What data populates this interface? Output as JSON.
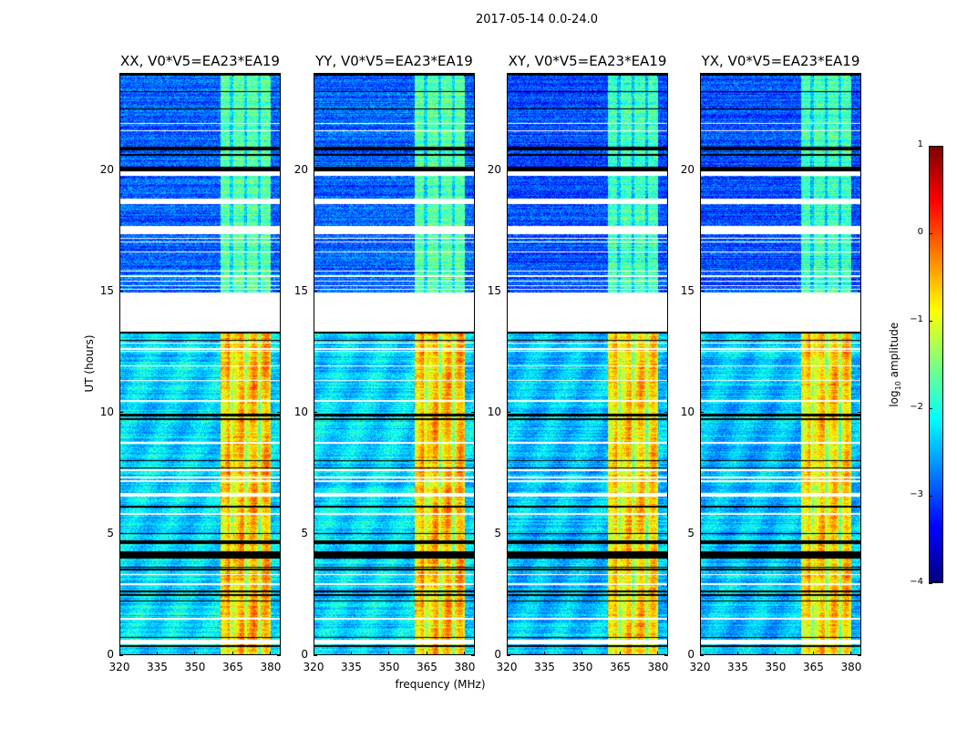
{
  "chart_data": {
    "type": "heatmap",
    "title": "2017-05-14 0.0-24.0",
    "xlabel": "frequency (MHz)",
    "ylabel": "UT (hours)",
    "xlim": [
      320,
      384
    ],
    "ylim": [
      0,
      24
    ],
    "xticks": [
      "320",
      "335",
      "350",
      "365",
      "380"
    ],
    "xtick_values": [
      320,
      335,
      350,
      365,
      380
    ],
    "yticks": [
      "0",
      "5",
      "10",
      "15",
      "20"
    ],
    "ytick_values": [
      0,
      5,
      10,
      15,
      20
    ],
    "panels": [
      {
        "title": "XX, V0*V5=EA23*EA19"
      },
      {
        "title": "YY, V0*V5=EA23*EA19"
      },
      {
        "title": "XY, V0*V5=EA23*EA19"
      },
      {
        "title": "YX, V0*V5=EA23*EA19"
      }
    ],
    "colorbar": {
      "label_prefix": "log",
      "label_sub": "10",
      "label_suffix": " amplitude",
      "range": [
        -4,
        1
      ],
      "ticks": [
        "1",
        "0",
        "−1",
        "−2",
        "−3",
        "−4"
      ],
      "tick_values": [
        1,
        0,
        -1,
        -2,
        -3,
        -4
      ],
      "colormap": "jet"
    },
    "levels": {
      "background_day": -2.9,
      "background_night": -2.3,
      "band_mhz": [
        360,
        380
      ],
      "band_day": -1.7,
      "band_night": -0.6,
      "band_gaps_mhz": [
        364.5,
        370,
        375.5
      ],
      "day_from_hour": 13.3
    },
    "flagged_hours": [
      [
        13.35,
        14.95
      ],
      [
        19.75,
        19.95
      ],
      [
        18.6,
        18.8
      ],
      [
        17.35,
        17.7
      ],
      [
        15.05,
        15.1
      ],
      [
        15.2,
        15.25
      ],
      [
        15.4,
        15.45
      ],
      [
        15.6,
        15.65
      ],
      [
        15.8,
        15.85
      ],
      [
        16.6,
        16.65
      ],
      [
        17.0,
        17.05
      ],
      [
        17.15,
        17.2
      ],
      [
        21.6,
        21.65
      ],
      [
        21.9,
        21.95
      ],
      [
        12.85,
        12.9
      ],
      [
        12.6,
        12.65
      ],
      [
        12.5,
        12.55
      ],
      [
        11.9,
        11.95
      ],
      [
        11.3,
        11.35
      ],
      [
        10.45,
        10.5
      ],
      [
        8.7,
        8.8
      ],
      [
        7.6,
        7.65
      ],
      [
        7.3,
        7.35
      ],
      [
        7.15,
        7.2
      ],
      [
        6.55,
        6.7
      ],
      [
        5.8,
        5.85
      ],
      [
        3.3,
        3.35
      ],
      [
        2.9,
        2.95
      ],
      [
        1.45,
        1.55
      ],
      [
        0.45,
        0.65
      ]
    ],
    "black_hours": [
      [
        23.9,
        24.0
      ],
      [
        23.2,
        23.25
      ],
      [
        22.5,
        22.55
      ],
      [
        20.8,
        20.95
      ],
      [
        20.6,
        20.65
      ],
      [
        19.95,
        20.15
      ],
      [
        13.25,
        13.35
      ],
      [
        12.95,
        13.0
      ],
      [
        9.85,
        9.95
      ],
      [
        9.7,
        9.75
      ],
      [
        8.0,
        8.05
      ],
      [
        7.7,
        7.75
      ],
      [
        6.1,
        6.15
      ],
      [
        5.0,
        5.05
      ],
      [
        4.6,
        4.75
      ],
      [
        4.0,
        4.3
      ],
      [
        3.6,
        3.65
      ],
      [
        3.5,
        3.55
      ],
      [
        2.6,
        2.65
      ],
      [
        2.45,
        2.5
      ],
      [
        2.2,
        2.25
      ],
      [
        0.7,
        0.75
      ],
      [
        0.35,
        0.4
      ]
    ]
  }
}
